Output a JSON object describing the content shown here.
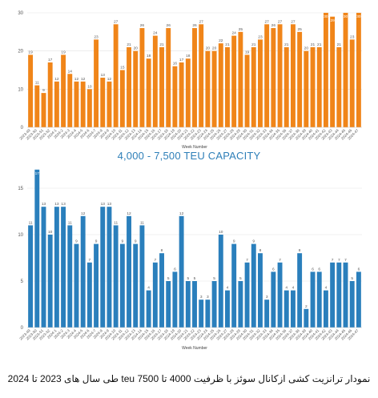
{
  "colors": {
    "top_bars": "#f08519",
    "bottom_bars": "#2a7fbc",
    "title": "#2e7fb8",
    "grid": "#e2e2e2"
  },
  "middle_title": "4,000 - 7,500 TEU CAPACITY",
  "caption": "نمودار ترانزیت کشی ازکانال سوئز با ظرفیت 4000 تا 7500 teu طی سال های 2023 تا 2024",
  "chart_data": [
    {
      "type": "bar",
      "title": "",
      "xlabel": "Week Number",
      "ylabel": "",
      "ylim": [
        0,
        30
      ],
      "yticks": [
        0,
        10,
        20,
        30
      ],
      "grid": true,
      "categories": [
        "2023-49",
        "2023-50",
        "2023-51",
        "2023-52",
        "2024-1",
        "2024-2",
        "2024-3",
        "2024-4",
        "2024-5",
        "2024-6",
        "2024-7",
        "2024-8",
        "2024-9",
        "2024-10",
        "2024-11",
        "2024-12",
        "2024-13",
        "2024-14",
        "2024-15",
        "2024-16",
        "2024-17",
        "2024-18",
        "2024-19",
        "2024-20",
        "2024-21",
        "2024-22",
        "2024-23",
        "2024-24",
        "2024-25",
        "2024-26",
        "2024-27",
        "2024-28",
        "2024-29",
        "2024-30",
        "2024-31",
        "2024-32",
        "2024-33",
        "2024-34",
        "2024-35",
        "2024-36",
        "2024-37",
        "2024-38",
        "2024-39",
        "2024-40",
        "2024-41",
        "2024-42",
        "2024-43",
        "2024-44",
        "2024-45",
        "2024-46",
        "2024-47"
      ],
      "values": [
        19,
        11,
        9,
        17,
        12,
        19,
        14,
        12,
        12,
        10,
        23,
        13,
        12,
        27,
        15,
        21,
        20,
        26,
        18,
        24,
        21,
        26,
        16,
        17,
        18,
        26,
        27,
        20,
        20,
        22,
        21,
        24,
        25,
        19,
        21,
        23,
        27,
        26,
        27,
        21,
        27,
        25,
        20,
        21,
        21,
        30,
        29,
        21,
        30,
        23,
        30
      ]
    },
    {
      "type": "bar",
      "title": "",
      "xlabel": "Week Number",
      "ylabel": "",
      "ylim": [
        0,
        17.5
      ],
      "yticks": [
        0,
        5,
        10,
        15
      ],
      "grid": true,
      "categories": [
        "2023-49",
        "2023-50",
        "2023-51",
        "2023-52",
        "2024-1",
        "2024-2",
        "2024-3",
        "2024-4",
        "2024-5",
        "2024-6",
        "2024-7",
        "2024-8",
        "2024-9",
        "2024-10",
        "2024-11",
        "2024-12",
        "2024-13",
        "2024-14",
        "2024-15",
        "2024-16",
        "2024-17",
        "2024-18",
        "2024-19",
        "2024-20",
        "2024-21",
        "2024-22",
        "2024-23",
        "2024-24",
        "2024-25",
        "2024-26",
        "2024-27",
        "2024-28",
        "2024-29",
        "2024-30",
        "2024-31",
        "2024-32",
        "2024-33",
        "2024-34",
        "2024-35",
        "2024-36",
        "2024-37",
        "2024-38",
        "2024-39",
        "2024-40",
        "2024-41",
        "2024-42",
        "2024-43",
        "2024-44",
        "2024-45",
        "2024-46",
        "2024-47"
      ],
      "values": [
        11,
        17,
        13,
        10,
        13,
        13,
        11,
        9,
        12,
        7,
        9,
        13,
        13,
        11,
        9,
        12,
        9,
        11,
        4,
        7,
        8,
        5,
        6,
        12,
        5,
        5,
        3,
        3,
        5,
        10,
        4,
        9,
        5,
        7,
        9,
        8,
        3,
        6,
        7,
        4,
        4,
        8,
        2,
        6,
        6,
        4,
        7,
        7,
        7,
        5,
        6
      ]
    }
  ]
}
